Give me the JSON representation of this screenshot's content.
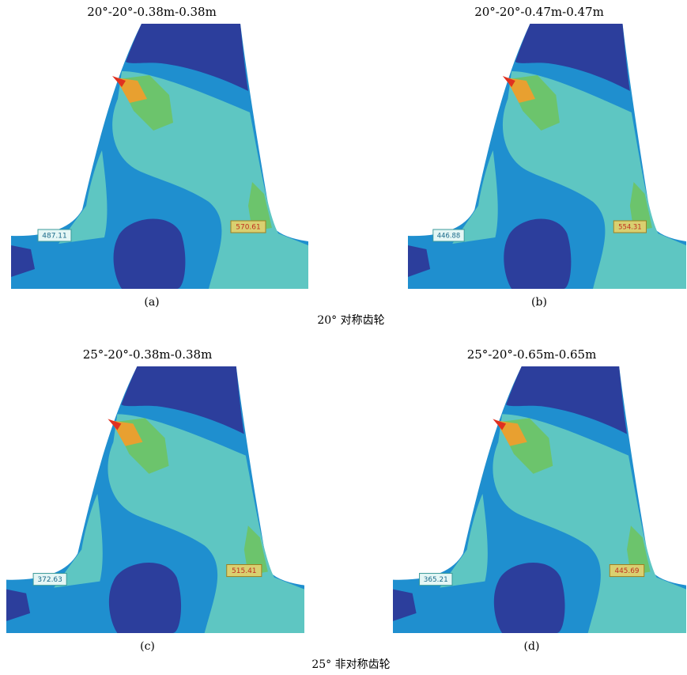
{
  "panels": [
    {
      "title": "20°-20°-0.38m-0.38m",
      "label": "(a)",
      "left_value": 487.11,
      "right_value": 570.61
    },
    {
      "title": "20°-20°-0.47m-0.47m",
      "label": "(b)",
      "left_value": 446.88,
      "right_value": 554.31
    },
    {
      "title": "25°-20°-0.38m-0.38m",
      "label": "(c)",
      "left_value": 372.63,
      "right_value": 515.41
    },
    {
      "title": "25°-20°-0.65m-0.65m",
      "label": "(d)",
      "left_value": 365.21,
      "right_value": 445.69
    }
  ],
  "groups": [
    "20° 对称齿轮",
    "25° 非对称齿轮"
  ]
}
